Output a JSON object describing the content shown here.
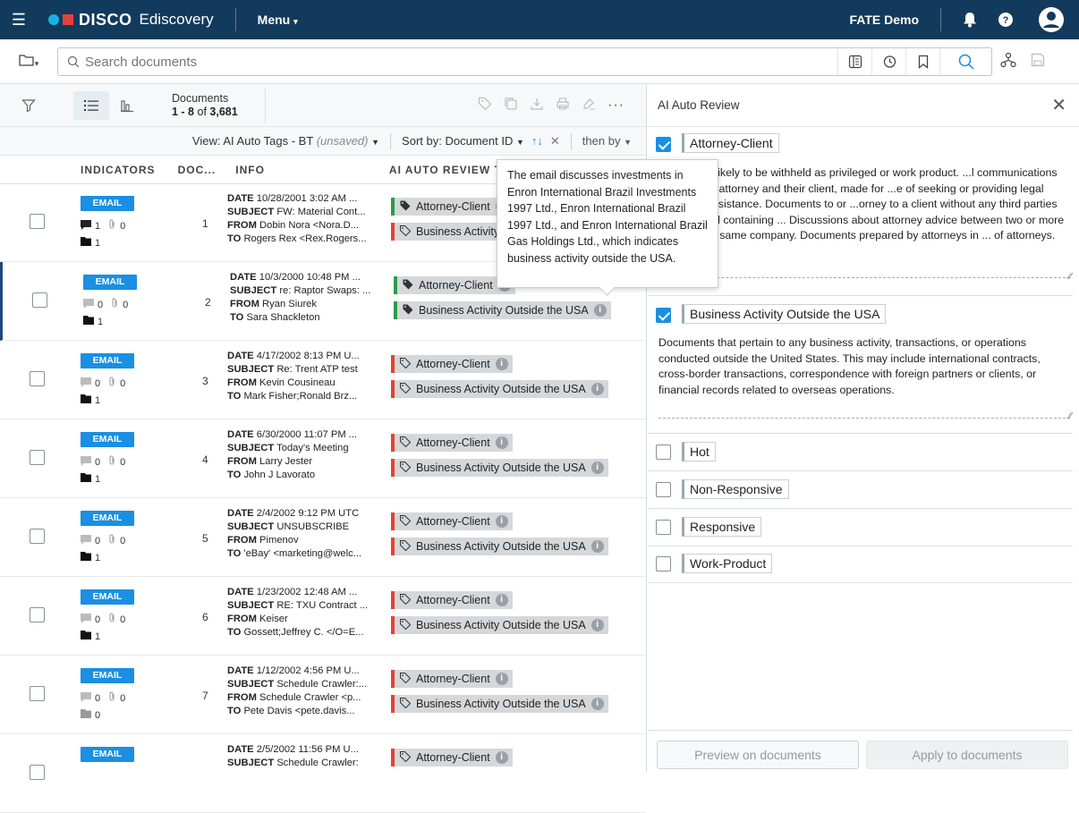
{
  "header": {
    "brand": "DISCO",
    "product": "Ediscovery",
    "menu": "Menu",
    "workspace": "FATE Demo"
  },
  "search": {
    "placeholder": "Search documents"
  },
  "toolbar": {
    "documents_label": "Documents",
    "range": "1 - 8",
    "of": "of",
    "total": "3,681"
  },
  "view": {
    "prefix": "View:",
    "name": "AI Auto Tags - BT",
    "unsaved": "(unsaved)",
    "sort_prefix": "Sort by:",
    "sort_field": "Document ID",
    "then_by": "then by"
  },
  "columns": {
    "indicators": "INDICATORS",
    "doc": "DOC...",
    "info": "INFO",
    "tags": "AI AUTO REVIEW TAGS"
  },
  "rows": [
    {
      "badge": "EMAIL",
      "comments": "1",
      "attach": "0",
      "folders": "1",
      "num": "1",
      "date": "10/28/2001 3:02 AM ...",
      "subject": "FW: Material Cont...",
      "from": "Dobin Nora <Nora.D...",
      "to": "Rogers Rex <Rex.Rogers...",
      "tag1": "Attorney-Client",
      "tag2": "Business Activity Outside the USA"
    },
    {
      "badge": "EMAIL",
      "comments": "0",
      "attach": "0",
      "folders": "1",
      "num": "2",
      "date": "10/3/2000 10:48 PM ...",
      "subject": "re: Raptor Swaps: ...",
      "from": "Ryan Siurek",
      "to": "Sara Shackleton",
      "tag1": "Attorney-Client",
      "tag2": "Business Activity Outside the USA"
    },
    {
      "badge": "EMAIL",
      "comments": "0",
      "attach": "0",
      "folders": "1",
      "num": "3",
      "date": "4/17/2002 8:13 PM U...",
      "subject": "Re: Trent ATP test",
      "from": "Kevin Cousineau",
      "to": "Mark Fisher;Ronald Brz...",
      "tag1": "Attorney-Client",
      "tag2": "Business Activity Outside the USA"
    },
    {
      "badge": "EMAIL",
      "comments": "0",
      "attach": "0",
      "folders": "1",
      "num": "4",
      "date": "6/30/2000 11:07 PM ...",
      "subject": "Today's Meeting",
      "from": "Larry Jester",
      "to": "John J Lavorato",
      "tag1": "Attorney-Client",
      "tag2": "Business Activity Outside the USA"
    },
    {
      "badge": "EMAIL",
      "comments": "0",
      "attach": "0",
      "folders": "1",
      "num": "5",
      "date": "2/4/2002 9:12 PM UTC",
      "subject": "UNSUBSCRIBE",
      "from": "Pimenov",
      "to": "'eBay' <marketing@welc...",
      "tag1": "Attorney-Client",
      "tag2": "Business Activity Outside the USA"
    },
    {
      "badge": "EMAIL",
      "comments": "0",
      "attach": "0",
      "folders": "1",
      "num": "6",
      "date": "1/23/2002 12:48 AM ...",
      "subject": "RE: TXU Contract ...",
      "from": "Keiser",
      "to": "Gossett;Jeffrey C. </O=E...",
      "tag1": "Attorney-Client",
      "tag2": "Business Activity Outside the USA"
    },
    {
      "badge": "EMAIL",
      "comments": "0",
      "attach": "0",
      "folders": "0",
      "num": "7",
      "date": "1/12/2002 4:56 PM U...",
      "subject": "Schedule Crawler:...",
      "from": "Schedule Crawler <p...",
      "to": "Pete Davis <pete.davis...",
      "tag1": "Attorney-Client",
      "tag2": "Business Activity Outside the USA"
    },
    {
      "badge": "EMAIL",
      "comments": "",
      "attach": "",
      "folders": "",
      "num": "",
      "date": "2/5/2002 11:56 PM U...",
      "subject": "Schedule Crawler:",
      "from": "",
      "to": "",
      "tag1": "Attorney-Client",
      "tag2": ""
    }
  ],
  "labels": {
    "date": "DATE",
    "subject": "SUBJECT",
    "from": "FROM",
    "to": "TO"
  },
  "tooltip": {
    "text": "The email discusses investments in Enron International Brazil Investments 1997 Ltd., Enron International Brazil 1997 Ltd., and Enron International Brazil Gas Holdings Ltd., which indicates business activity outside the USA."
  },
  "panel": {
    "title": "AI Auto Review",
    "tags": [
      {
        "label": "Attorney-Client",
        "checked": true,
        "description": "...asonably likely to be withheld as privileged or work product. ...l communications between an attorney and their client, made for ...e of seeking or providing legal advice or assistance. Documents to or ...orney to a client without any third parties present, and containing ... Discussions about attorney advice between two or more people ...he same company. Documents prepared by attorneys in ... of attorneys."
      },
      {
        "label": "Business Activity Outside the USA",
        "checked": true,
        "description": "Documents that pertain to any business activity, transactions, or operations conducted outside the United States. This may include international contracts, cross-border transactions, correspondence with foreign partners or clients, or financial records related to overseas operations."
      },
      {
        "label": "Hot",
        "checked": false
      },
      {
        "label": "Non-Responsive",
        "checked": false
      },
      {
        "label": "Responsive",
        "checked": false
      },
      {
        "label": "Work-Product",
        "checked": false
      }
    ],
    "preview_button": "Preview on documents",
    "apply_button": "Apply to documents"
  },
  "colors": {
    "topbar": "#123a5c",
    "accent": "#1a8fe3",
    "tag_red": "#e4432f",
    "tag_green": "#2e9a4a"
  }
}
